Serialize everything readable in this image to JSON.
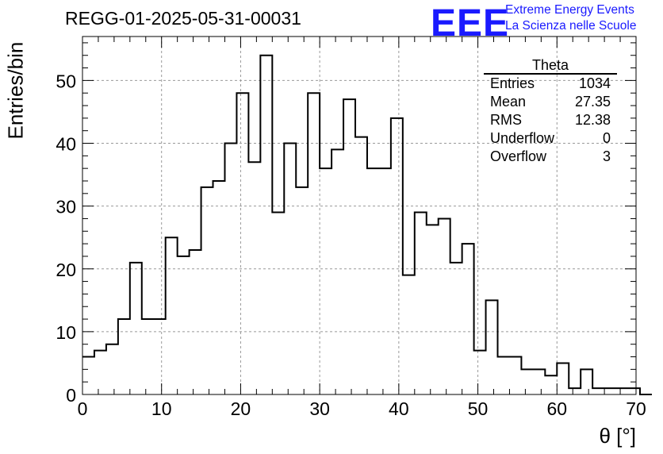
{
  "header": {
    "title": "REGG-01-2025-05-31-00031",
    "logo_text": "EEE",
    "logo_line1": "Extreme Energy Events",
    "logo_line2": "La Scienza nelle Scuole"
  },
  "stats": {
    "title": "Theta",
    "rows": [
      {
        "label": "Entries",
        "value": "1034"
      },
      {
        "label": "Mean",
        "value": "27.35"
      },
      {
        "label": "RMS",
        "value": "12.38"
      },
      {
        "label": "Underflow",
        "value": "0"
      },
      {
        "label": "Overflow",
        "value": "3"
      }
    ]
  },
  "chart_data": {
    "type": "bar",
    "style": "step-histogram",
    "title": "REGG-01-2025-05-31-00031",
    "xlabel": "θ [°]",
    "ylabel": "Entries/bin",
    "xlim": [
      0,
      70
    ],
    "ylim": [
      0,
      57
    ],
    "bin_width": 1.5,
    "bin_start": 0,
    "values": [
      6,
      7,
      8,
      12,
      21,
      12,
      12,
      25,
      22,
      23,
      33,
      34,
      40,
      48,
      37,
      54,
      29,
      40,
      33,
      48,
      36,
      39,
      47,
      41,
      36,
      36,
      44,
      19,
      29,
      27,
      28,
      21,
      24,
      7,
      15,
      6,
      6,
      4,
      4,
      3,
      5,
      1,
      4,
      1,
      1,
      1,
      1,
      0
    ],
    "xticks": [
      0,
      10,
      20,
      30,
      40,
      50,
      60,
      70
    ],
    "yticks": [
      0,
      10,
      20,
      30,
      40,
      50
    ],
    "grid": true
  }
}
